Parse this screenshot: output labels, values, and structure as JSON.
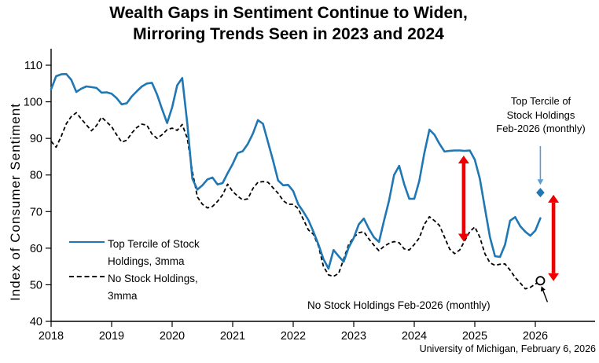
{
  "title": {
    "line1": "Wealth Gaps in Sentiment Continue to Widen,",
    "line2": "Mirroring Trends Seen in 2023 and 2024"
  },
  "y_axis": {
    "label": "Index of Consumer Sentiment",
    "ticks": [
      40,
      50,
      60,
      70,
      80,
      90,
      100,
      110
    ],
    "min": 40,
    "max": 110
  },
  "x_axis": {
    "tick_labels": [
      "2018",
      "2019",
      "2020",
      "2021",
      "2022",
      "2023",
      "2024",
      "2025",
      "2026"
    ]
  },
  "legend": {
    "items": [
      {
        "line1": "Top Tercile of Stock",
        "line2": "Holdings, 3mma"
      },
      {
        "line1": "No Stock Holdings,",
        "line2": "3mma"
      }
    ]
  },
  "annotations": {
    "top_marker": {
      "line1": "Top Tercile of",
      "line2": "Stock Holdings",
      "line3": "Feb-2026 (monthly)"
    },
    "bottom_marker": {
      "text": "No Stock Holdings Feb-2026 (monthly)"
    }
  },
  "source": "University of Michigan, February 6, 2026",
  "colors": {
    "top_tercile": "#1F77B4",
    "no_stock": "#000000",
    "red_arrow": "#EE0000",
    "guide_arrow": "#5B9BD5",
    "axis": "#000000"
  },
  "chart_data": {
    "type": "line",
    "title": "Wealth Gaps in Sentiment Continue to Widen, Mirroring Trends Seen in 2023 and 2024",
    "ylabel": "Index of Consumer Sentiment",
    "ylim": [
      40,
      110
    ],
    "x_start": "2018-01",
    "x_end": "2026-02",
    "frequency": "monthly",
    "grid": false,
    "legend_position": "inside-left",
    "series": [
      {
        "name": "Top Tercile of Stock Holdings, 3mma",
        "style": "solid",
        "values": [
          103.4,
          107.0,
          107.5,
          107.6,
          106.0,
          102.7,
          103.6,
          104.2,
          104.0,
          103.8,
          102.5,
          102.6,
          102.2,
          101.0,
          99.3,
          99.6,
          101.5,
          102.9,
          104.2,
          105.0,
          105.2,
          102.0,
          98.0,
          94.2,
          98.5,
          104.5,
          106.5,
          94.0,
          79.0,
          76.0,
          77.2,
          78.8,
          79.3,
          77.4,
          77.8,
          80.5,
          83.0,
          86.0,
          86.5,
          88.5,
          91.3,
          95.0,
          94.0,
          89.0,
          84.0,
          78.5,
          77.2,
          77.3,
          75.6,
          72.0,
          70.0,
          67.7,
          64.5,
          61.0,
          57.0,
          54.4,
          59.5,
          57.8,
          56.3,
          60.2,
          62.8,
          66.5,
          68.1,
          65.3,
          63.0,
          61.7,
          67.5,
          73.0,
          80.0,
          82.5,
          77.5,
          73.5,
          73.5,
          78.4,
          86.0,
          92.4,
          91.0,
          88.5,
          86.4,
          86.6,
          86.7,
          86.7,
          86.6,
          86.7,
          84.2,
          79.0,
          71.0,
          63.0,
          57.8,
          57.6,
          61.0,
          67.5,
          68.5,
          66.0,
          64.5,
          63.4,
          64.8,
          68.2
        ]
      },
      {
        "name": "No Stock Holdings, 3mma",
        "style": "dashed",
        "values": [
          89.2,
          87.6,
          90.5,
          94.0,
          96.0,
          97.0,
          95.3,
          93.7,
          92.1,
          93.5,
          95.8,
          94.5,
          93.2,
          91.0,
          89.0,
          89.5,
          91.5,
          93.0,
          93.9,
          93.6,
          91.2,
          90.0,
          91.0,
          92.4,
          92.8,
          92.2,
          93.8,
          90.0,
          81.0,
          74.0,
          72.0,
          71.0,
          71.4,
          72.8,
          74.6,
          77.5,
          75.5,
          74.2,
          73.2,
          73.5,
          76.3,
          78.0,
          78.2,
          78.0,
          76.5,
          75.0,
          73.0,
          72.0,
          72.0,
          70.8,
          67.9,
          65.0,
          63.8,
          60.6,
          55.0,
          52.7,
          52.3,
          53.1,
          57.0,
          61.0,
          63.0,
          64.2,
          64.5,
          62.5,
          60.8,
          59.3,
          60.5,
          61.3,
          61.8,
          61.5,
          59.8,
          59.5,
          61.0,
          62.8,
          66.5,
          68.6,
          67.5,
          66.2,
          63.0,
          59.8,
          58.5,
          59.5,
          62.0,
          64.5,
          65.8,
          63.0,
          58.5,
          56.0,
          55.3,
          55.6,
          55.7,
          54.0,
          52.0,
          50.5,
          48.9,
          49.3,
          50.2,
          51.0
        ]
      }
    ],
    "point_markers": [
      {
        "name": "Top Tercile of Stock Holdings Feb-2026 (monthly)",
        "shape": "diamond",
        "month_index": 97,
        "value": 75.2
      },
      {
        "name": "No Stock Holdings Feb-2026 (monthly)",
        "shape": "open-circle",
        "month_index": 97,
        "value": 51.1
      }
    ],
    "gap_arrows": [
      {
        "month_index": 81.8,
        "value_top": 85.3,
        "value_bottom": 61.8
      },
      {
        "month_index": 99.6,
        "value_top": 74.6,
        "value_bottom": 51.0
      }
    ],
    "guide_arrows": {
      "blue": {
        "month_index": 97.0,
        "value_from": 87.9,
        "value_to": 77.3
      },
      "black": {
        "from_month": 98.4,
        "from_value": 45.3,
        "to_month": 97.2,
        "to_value": 49.6
      }
    }
  }
}
